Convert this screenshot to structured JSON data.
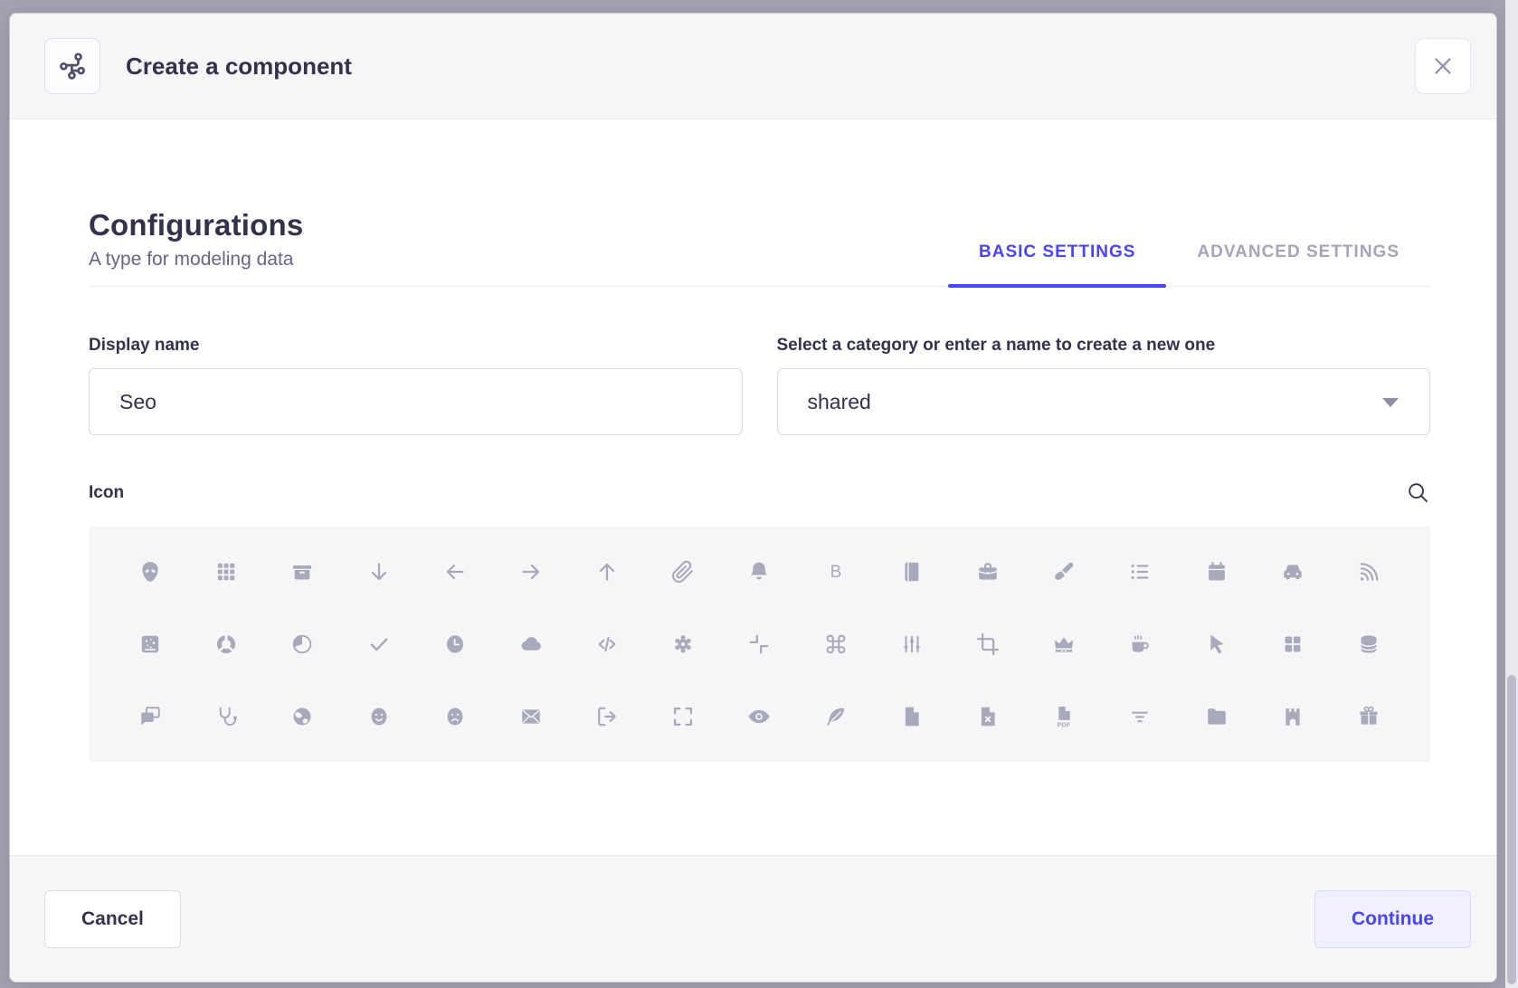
{
  "modal": {
    "header": {
      "title": "Create a component",
      "badge_icon": "component-icon",
      "close_icon": "close-icon"
    },
    "body": {
      "heading": "Configurations",
      "subheading": "A type for modeling data",
      "tabs": [
        {
          "label": "BASIC SETTINGS",
          "active": true
        },
        {
          "label": "ADVANCED SETTINGS",
          "active": false
        }
      ],
      "fields": {
        "display_name": {
          "label": "Display name",
          "value": "Seo"
        },
        "category": {
          "label": "Select a category or enter a name to create a new one",
          "value": "shared"
        }
      },
      "icon_picker": {
        "label": "Icon",
        "search_icon": "search-icon",
        "icons": [
          "alien",
          "apps",
          "archive",
          "arrow-down",
          "arrow-left",
          "arrow-right",
          "arrow-up",
          "attachment",
          "bell",
          "bold",
          "book",
          "briefcase",
          "brush",
          "bullet-list",
          "calendar",
          "car",
          "cast",
          "chart-bubble",
          "chart-circle",
          "chart-pie",
          "check",
          "clock",
          "cloud",
          "code",
          "cog",
          "collapse",
          "command",
          "connector",
          "crop",
          "crown",
          "cup",
          "cursor",
          "dashboard",
          "database",
          "discuss",
          "doctor",
          "earth",
          "emotion-happy",
          "emotion-unhappy",
          "envelop",
          "exit",
          "expand",
          "eye",
          "feather",
          "file",
          "file-error",
          "file-pdf",
          "filter",
          "folder",
          "gate",
          "gift"
        ]
      }
    },
    "footer": {
      "cancel_label": "Cancel",
      "continue_label": "Continue"
    }
  },
  "colors": {
    "accent": "#4945ff",
    "accent_button_bg": "#f0f0ff",
    "accent_button_border": "#d9d8ff",
    "text": "#32324d",
    "muted_text": "#666687",
    "inactive_tab": "#a5a5ba",
    "input_border": "#dcdce4",
    "divider": "#eaeaef",
    "panel_bg": "#f6f6f9",
    "icon_gray": "#a9a9bc"
  }
}
